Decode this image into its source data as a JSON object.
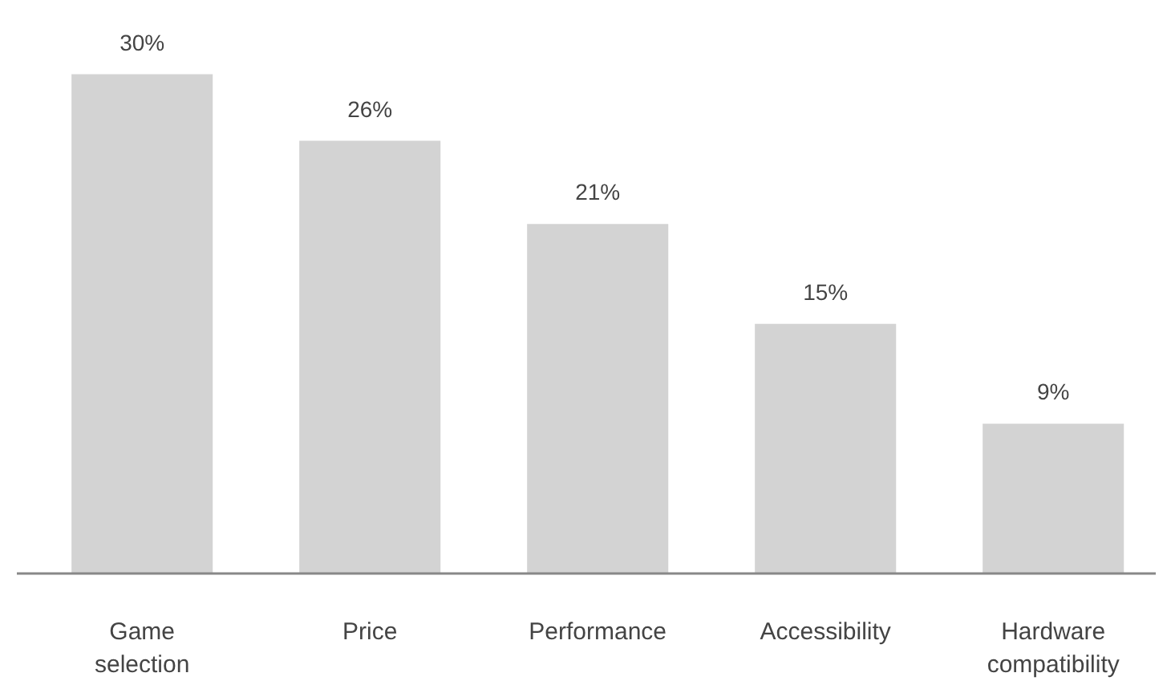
{
  "chart_data": {
    "type": "bar",
    "categories": [
      "Game selection",
      "Price",
      "Performance",
      "Accessibility",
      "Hardware compatibility"
    ],
    "values": [
      30,
      26,
      21,
      15,
      9
    ],
    "value_labels": [
      "30%",
      "26%",
      "21%",
      "15%",
      "9%"
    ],
    "color": "#d3d3d3",
    "grid": false
  }
}
